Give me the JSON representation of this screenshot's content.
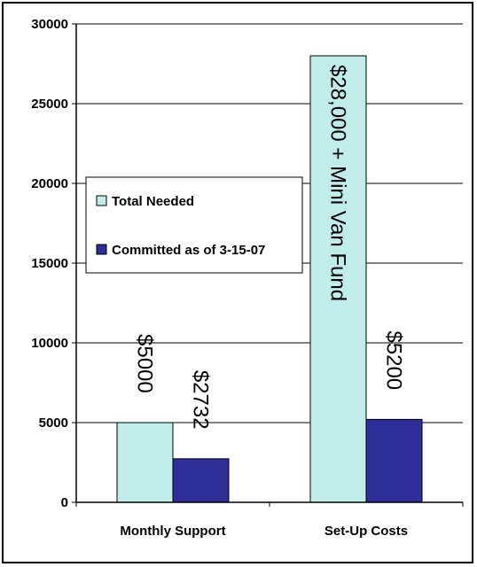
{
  "chart_data": {
    "type": "bar",
    "categories": [
      "Monthly Support",
      "Set-Up Costs"
    ],
    "series": [
      {
        "name": "Total Needed",
        "values": [
          5000,
          28000
        ],
        "color": "#c0ecea",
        "labels": [
          "$5000",
          "$28,000 + Mini Van Fund"
        ]
      },
      {
        "name": "Committed as of 3-15-07",
        "values": [
          2732,
          5200
        ],
        "color": "#2e2e98",
        "labels": [
          "$2732",
          "$5200"
        ]
      }
    ],
    "ylim": [
      0,
      30000
    ],
    "yticks": [
      "0",
      "5000",
      "10000",
      "15000",
      "20000",
      "25000",
      "30000"
    ],
    "grid": true,
    "legend": "left",
    "title": "",
    "xlabel": "",
    "ylabel": ""
  }
}
